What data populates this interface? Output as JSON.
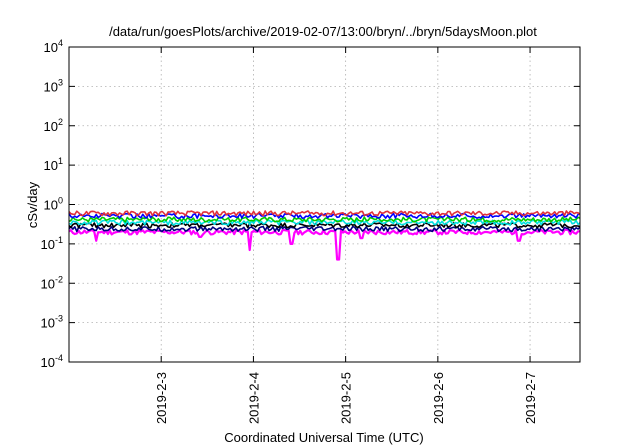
{
  "chart_data": {
    "type": "line",
    "title": "/data/run/goesPlots/archive/2019-02-07/13:00/bryn/../bryn/5daysMoon.plot",
    "xlabel": "Coordinated Universal Time (UTC)",
    "ylabel": "cSv/day",
    "x_scale": "time",
    "y_scale": "log",
    "xlim": [
      "2019-02-02T00:00",
      "2019-02-07T13:00"
    ],
    "ylim": [
      0.0001,
      10000
    ],
    "x_ticks": [
      {
        "value": "2019-02-03T00:00",
        "label": "2019-2-3"
      },
      {
        "value": "2019-02-04T00:00",
        "label": "2019-2-4"
      },
      {
        "value": "2019-02-05T00:00",
        "label": "2019-2-5"
      },
      {
        "value": "2019-02-06T00:00",
        "label": "2019-2-6"
      },
      {
        "value": "2019-02-07T00:00",
        "label": "2019-2-7"
      }
    ],
    "y_ticks": [
      {
        "value": 0.0001,
        "base": "10",
        "exp": "-4"
      },
      {
        "value": 0.001,
        "base": "10",
        "exp": "-3"
      },
      {
        "value": 0.01,
        "base": "10",
        "exp": "-2"
      },
      {
        "value": 0.1,
        "base": "10",
        "exp": "-1"
      },
      {
        "value": 1,
        "base": "10",
        "exp": "0"
      },
      {
        "value": 10,
        "base": "10",
        "exp": "1"
      },
      {
        "value": 100,
        "base": "10",
        "exp": "2"
      },
      {
        "value": 1000,
        "base": "10",
        "exp": "3"
      },
      {
        "value": 10000,
        "base": "10",
        "exp": "4"
      }
    ],
    "grid": true,
    "legend": "none",
    "series": [
      {
        "color": "#ff00ff",
        "level": 0.2,
        "dips": [
          {
            "x": "2019-02-02T07:00",
            "y": 0.12
          },
          {
            "x": "2019-02-03T10:00",
            "y": 0.15
          },
          {
            "x": "2019-02-03T23:00",
            "y": 0.07
          },
          {
            "x": "2019-02-04T10:00",
            "y": 0.1
          },
          {
            "x": "2019-02-04T22:00",
            "y": 0.04
          },
          {
            "x": "2019-02-05T04:00",
            "y": 0.14
          },
          {
            "x": "2019-02-06T21:00",
            "y": 0.12
          }
        ]
      },
      {
        "color": "#000080",
        "level": 0.24
      },
      {
        "color": "#000000",
        "level": 0.3
      },
      {
        "color": "#00e0e0",
        "level": 0.35
      },
      {
        "color": "#00cc00",
        "level": 0.42
      },
      {
        "color": "#0000ff",
        "level": 0.52
      },
      {
        "color": "#e0303a",
        "level": 0.6
      }
    ]
  }
}
